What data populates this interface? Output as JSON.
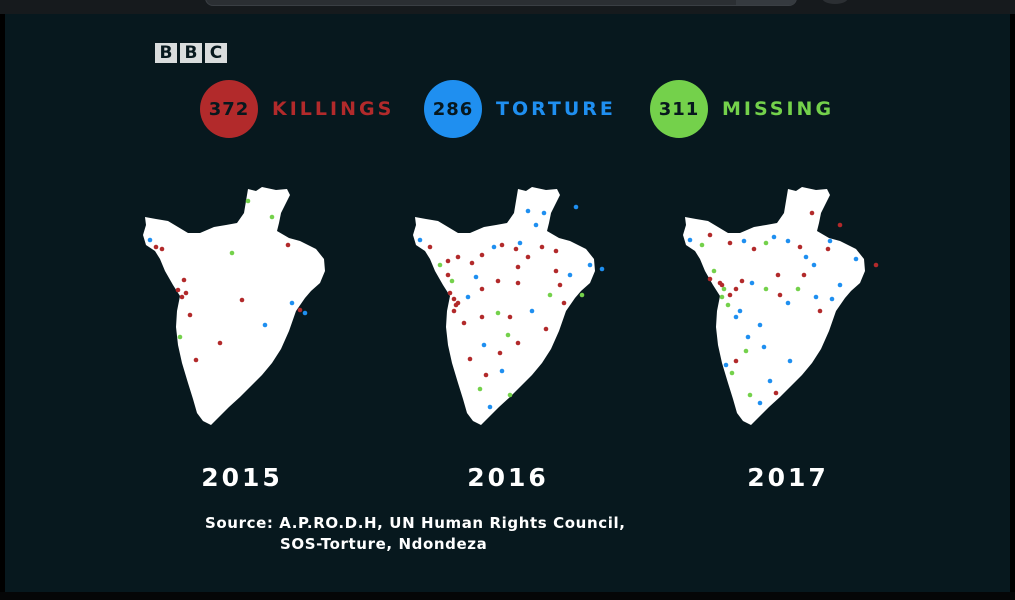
{
  "brand": {
    "logo_letters": [
      "B",
      "B",
      "C"
    ]
  },
  "legend": [
    {
      "value": "372",
      "label": "KILLINGS",
      "color": "#b22a2b"
    },
    {
      "value": "286",
      "label": "TORTURE",
      "color": "#1f8ff0"
    },
    {
      "value": "311",
      "label": "MISSING",
      "color": "#74d14b"
    }
  ],
  "maps": [
    {
      "year": "2015"
    },
    {
      "year": "2016"
    },
    {
      "year": "2017"
    }
  ],
  "source": {
    "line1": "Source: A.P.RO.D.H, UN Human Rights Council,",
    "line2": "SOS-Torture, Ndondeza"
  },
  "colors": {
    "background": "#07181e",
    "map_fill": "#ffffff",
    "text": "#ffffff"
  }
}
